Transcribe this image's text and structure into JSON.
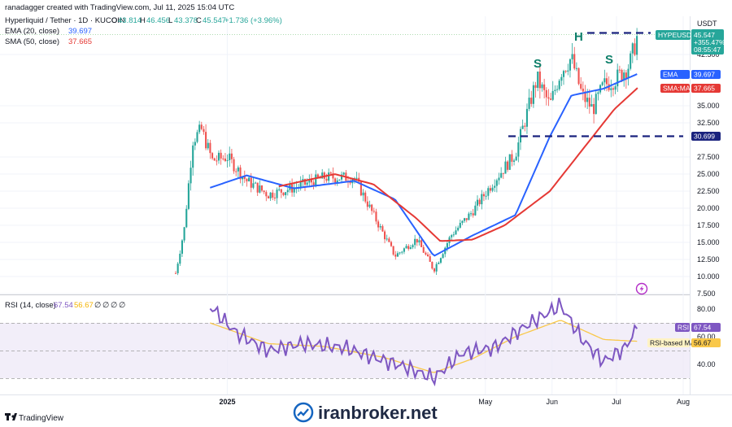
{
  "header": {
    "credit": "ranadagger created with TradingView.com, Jul 11, 2025 15:04 UTC",
    "symbol_line": "Hyperliquid / Tether · 1D · KUCOIN",
    "ohlc": [
      {
        "key": "O",
        "value": "43.814"
      },
      {
        "key": "H",
        "value": "46.456"
      },
      {
        "key": "L",
        "value": "43.378"
      },
      {
        "key": "C",
        "value": "45.547"
      }
    ],
    "change": "+1.736 (+3.96%)",
    "ema_label": "EMA (20, close)",
    "ema_value": "39.697",
    "sma_label": "SMA (50, close)",
    "sma_value": "37.665",
    "rsi_label": "RSI (14, close)",
    "rsi_value": "67.54",
    "rsi_ma_value": "56.67",
    "rsi_extra": [
      "∅",
      "∅",
      "∅",
      "∅"
    ]
  },
  "price_axis": {
    "currency": "USDT",
    "ticks": [
      "42.500",
      "35.000",
      "32.500",
      "27.500",
      "25.000",
      "22.500",
      "20.000",
      "17.500",
      "15.000",
      "12.500",
      "10.000",
      "7.500"
    ]
  },
  "rsi_axis": {
    "ticks": [
      "80.00",
      "60.00",
      "40.00"
    ]
  },
  "time_axis": {
    "ticks": [
      "2025",
      "May",
      "Jun",
      "Jul",
      "Aug"
    ]
  },
  "badges": {
    "symbol": "HYPEUSDT",
    "last_price": "45.547",
    "pct": "+355.47%",
    "countdown": "08:55:47",
    "ema_tag": "EMA",
    "ema_val": "39.697",
    "sma_tag": "SMA:MA",
    "sma_val": "37.665",
    "level": "30.699",
    "rsi_tag": "RSI",
    "rsi_val": "67.54",
    "rsi_ma_tag": "RSI-based MA",
    "rsi_ma_val": "56.67"
  },
  "annotations": {
    "left_shoulder": "S",
    "head": "H",
    "right_shoulder": "S"
  },
  "footer": {
    "brand": "TradingView",
    "watermark": "iranbroker.net"
  },
  "colors": {
    "up": "#26a69a",
    "down": "#ef5350",
    "ema": "#2962ff",
    "sma": "#e53935",
    "rsi": "#7e57c2",
    "rsi_ma": "#f9c84a",
    "rsi_band": "#ede7f6",
    "level": "#1a237e"
  },
  "chart_data": [
    {
      "type": "candlestick",
      "title": "Hyperliquid / Tether · 1D · KUCOIN",
      "ylabel": "USDT",
      "ylim": [
        7.5,
        47
      ],
      "series": [
        {
          "name": "EMA (20, close)",
          "x": [
            "2024-12-24",
            "2025-01-10",
            "2025-02-01",
            "2025-03-01",
            "2025-03-20",
            "2025-04-07",
            "2025-04-25",
            "2025-05-15",
            "2025-05-31",
            "2025-06-10",
            "2025-06-25",
            "2025-07-11"
          ],
          "values": [
            23.0,
            24.8,
            22.9,
            24.0,
            21.3,
            13.0,
            16.0,
            19.0,
            30.5,
            36.5,
            37.5,
            39.697
          ]
        },
        {
          "name": "SMA (50, close)",
          "x": [
            "2025-01-25",
            "2025-02-20",
            "2025-03-10",
            "2025-03-30",
            "2025-04-10",
            "2025-04-25",
            "2025-05-10",
            "2025-05-31",
            "2025-06-15",
            "2025-06-30",
            "2025-07-11"
          ],
          "values": [
            23.2,
            25.0,
            23.5,
            18.5,
            15.2,
            15.4,
            17.5,
            22.5,
            28.5,
            34.5,
            37.665
          ]
        },
        {
          "name": "Price",
          "x": [
            "2024-12-08",
            "2024-12-12",
            "2024-12-16",
            "2024-12-20",
            "2024-12-25",
            "2025-01-01",
            "2025-01-10",
            "2025-01-20",
            "2025-02-01",
            "2025-02-15",
            "2025-03-01",
            "2025-03-10",
            "2025-03-20",
            "2025-03-30",
            "2025-04-07",
            "2025-04-15",
            "2025-04-25",
            "2025-05-05",
            "2025-05-15",
            "2025-05-25",
            "2025-05-31",
            "2025-06-05",
            "2025-06-10",
            "2025-06-15",
            "2025-06-20",
            "2025-06-25",
            "2025-07-01",
            "2025-07-07",
            "2025-07-11"
          ],
          "values": [
            10.5,
            17.0,
            30.0,
            31.5,
            27.0,
            27.5,
            24.0,
            22.0,
            23.0,
            24.5,
            24.5,
            19.0,
            13.0,
            15.5,
            11.0,
            16.0,
            19.5,
            24.0,
            28.0,
            39.0,
            35.0,
            40.0,
            42.0,
            36.5,
            34.5,
            38.0,
            39.0,
            41.0,
            45.547
          ]
        }
      ],
      "annotations": [
        "S",
        "H",
        "S",
        "30.699"
      ],
      "levels": [
        30.699,
        45.547
      ],
      "grid": true,
      "legend": "top-left"
    },
    {
      "type": "line",
      "title": "RSI (14, close)",
      "ylim": [
        20,
        90
      ],
      "series": [
        {
          "name": "RSI",
          "x": [
            "2024-12-24",
            "2025-01-05",
            "2025-01-20",
            "2025-02-05",
            "2025-02-25",
            "2025-03-10",
            "2025-03-25",
            "2025-04-07",
            "2025-04-20",
            "2025-05-05",
            "2025-05-20",
            "2025-05-31",
            "2025-06-05",
            "2025-06-15",
            "2025-06-25",
            "2025-07-05",
            "2025-07-11"
          ],
          "values": [
            82,
            63,
            50,
            55,
            52,
            45,
            38,
            30,
            48,
            52,
            68,
            78,
            83,
            58,
            42,
            52,
            67.54
          ]
        },
        {
          "name": "RSI-based MA",
          "x": [
            "2024-12-24",
            "2025-01-20",
            "2025-02-15",
            "2025-03-15",
            "2025-04-07",
            "2025-04-25",
            "2025-05-15",
            "2025-06-05",
            "2025-06-25",
            "2025-07-11"
          ],
          "values": [
            70,
            55,
            53,
            45,
            34,
            44,
            60,
            72,
            58,
            56.67
          ]
        }
      ],
      "bands": [
        30,
        70
      ],
      "grid": true,
      "legend": "top-left"
    }
  ]
}
